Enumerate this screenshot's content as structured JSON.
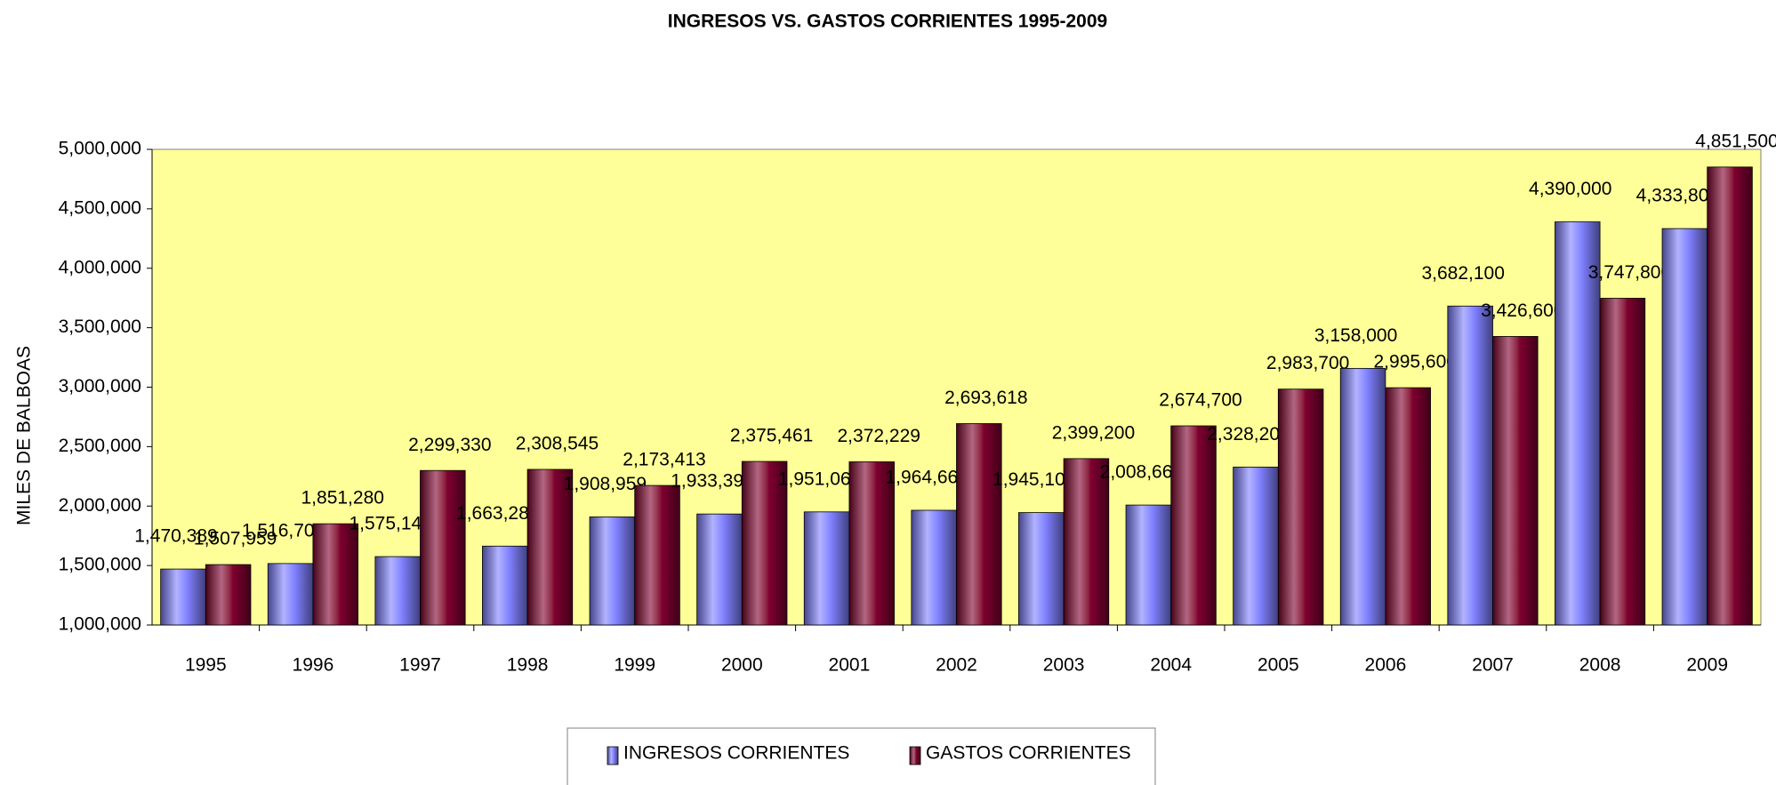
{
  "chart_data": {
    "type": "bar",
    "title": "INGRESOS VS. GASTOS CORRIENTES 1995-2009",
    "y_label": "MILES DE BALBOAS",
    "categories": [
      "1995",
      "1996",
      "1997",
      "1998",
      "1999",
      "2000",
      "2001",
      "2002",
      "2003",
      "2004",
      "2005",
      "2006",
      "2007",
      "2008",
      "2009"
    ],
    "series": [
      {
        "name": "INGRESOS CORRIENTES",
        "color": "#8080ff",
        "values": [
          1470389,
          1516700,
          1575146,
          1663286,
          1908959,
          1933397,
          1951067,
          1964663,
          1945100,
          2008660,
          2328200,
          3158000,
          3682100,
          4390000,
          4333800
        ],
        "value_labels": [
          "1,470,389",
          "1,516,700",
          "1,575,146",
          "1,663,286",
          "1,908,959",
          "1,933,397",
          "1,951,067",
          "1,964,663",
          "1,945,100",
          "2,008,660",
          "2,328,200",
          "3,158,000",
          "3,682,100",
          "4,390,000",
          "4,333,800"
        ]
      },
      {
        "name": "GASTOS CORRIENTES",
        "color": "#800030",
        "values": [
          1507959,
          1851280,
          2299330,
          2308545,
          2173413,
          2375461,
          2372229,
          2693618,
          2399200,
          2674700,
          2983700,
          2995600,
          3426600,
          3747800,
          4851500
        ],
        "value_labels": [
          "1,507,959",
          "1,851,280",
          "2,299,330",
          "2,308,545",
          "2,173,413",
          "2,375,461",
          "2,372,229",
          "2,693,618",
          "2,399,200",
          "2,674,700",
          "2,983,700",
          "2,995,600",
          "3,426,600",
          "3,747,800",
          "4,851,500"
        ]
      }
    ],
    "ylim": [
      1000000,
      5000000
    ],
    "yticks": [
      {
        "value": 1000000,
        "label": "1,000,000"
      },
      {
        "value": 1500000,
        "label": "1,500,000"
      },
      {
        "value": 2000000,
        "label": "2,000,000"
      },
      {
        "value": 2500000,
        "label": "2,500,000"
      },
      {
        "value": 3000000,
        "label": "3,000,000"
      },
      {
        "value": 3500000,
        "label": "3,500,000"
      },
      {
        "value": 4000000,
        "label": "4,000,000"
      },
      {
        "value": 4500000,
        "label": "4,500,000"
      },
      {
        "value": 5000000,
        "label": "5,000,000"
      }
    ],
    "grid": false,
    "background": "#ffff99",
    "legend": "bottom"
  }
}
